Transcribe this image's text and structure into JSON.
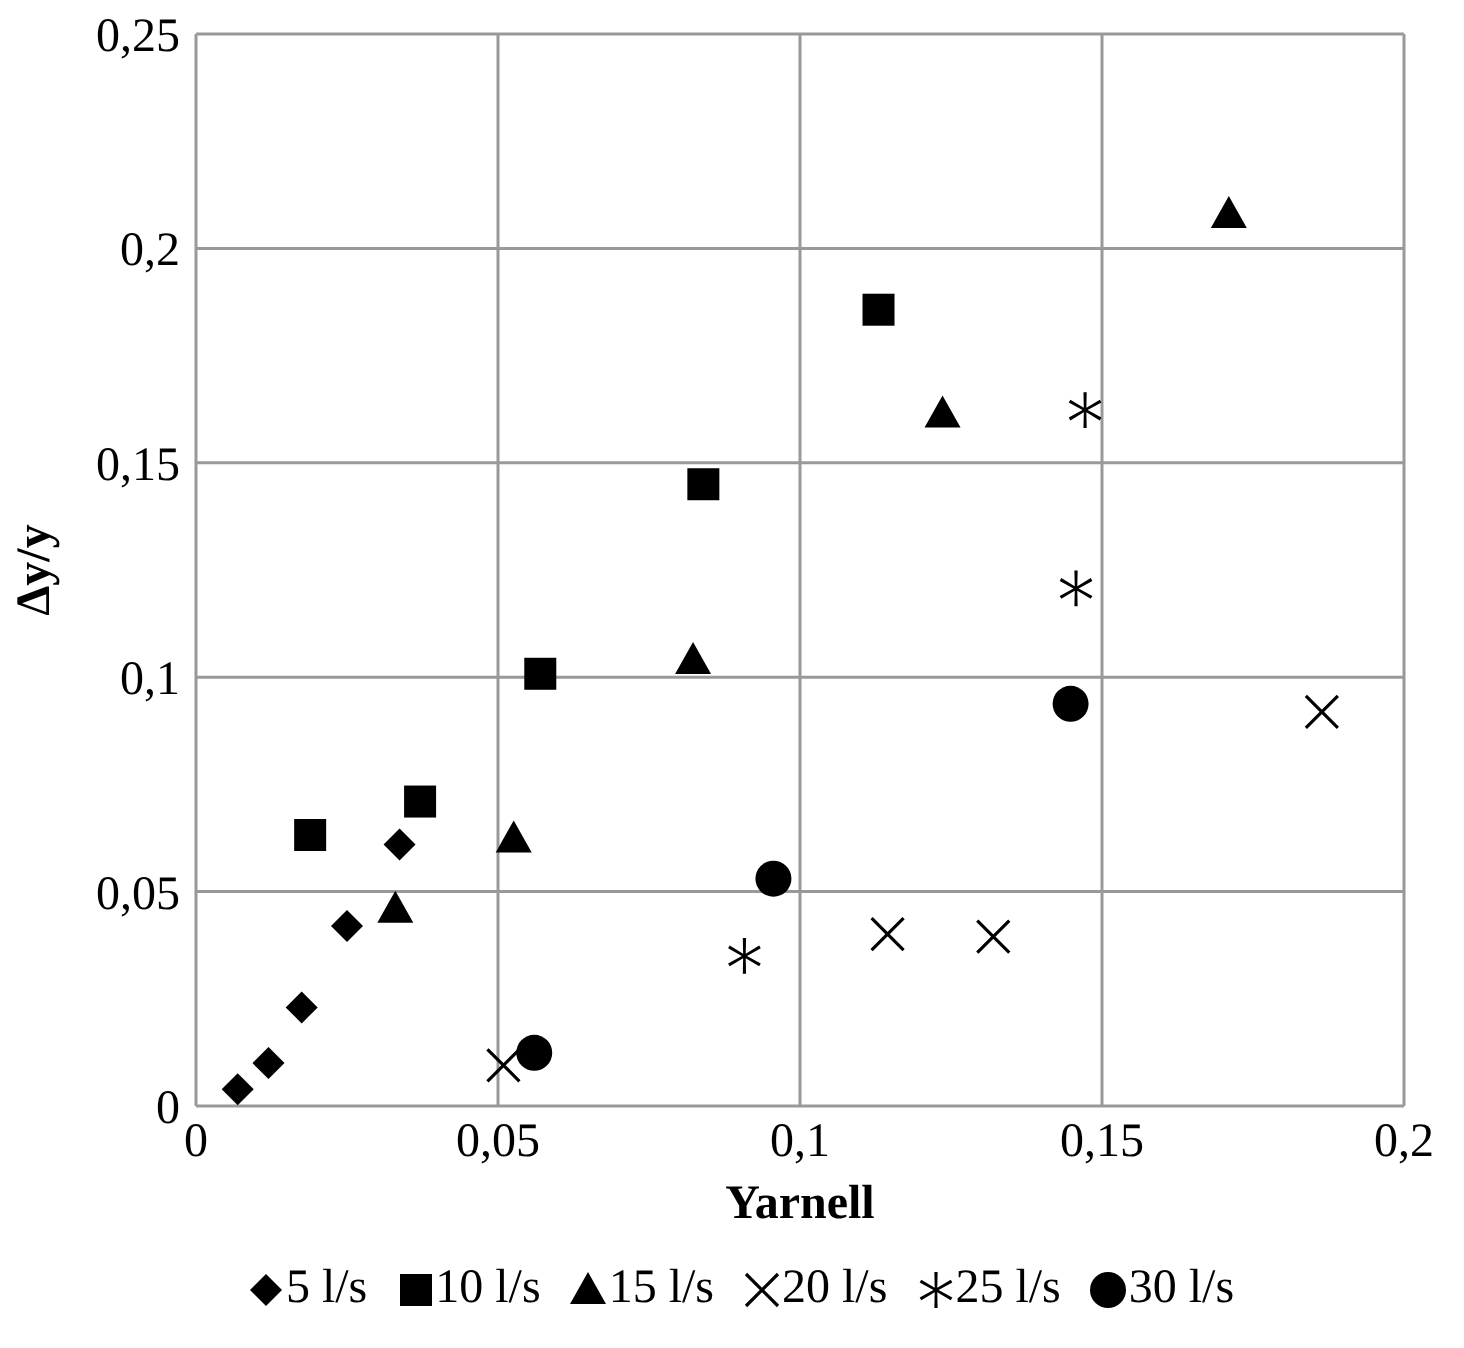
{
  "chart_data": {
    "type": "scatter",
    "xlabel": "Yarnell",
    "ylabel": "Δy/y",
    "xlim": [
      0,
      0.2
    ],
    "xticks": [
      0,
      {
        "value": 0.05,
        "label": "0,05"
      },
      {
        "value": 0.1,
        "label": "0,1"
      },
      {
        "value": 0.15,
        "label": "0,15"
      },
      {
        "value": 0.2,
        "label": "0,2"
      }
    ],
    "ylim": [
      0,
      0.25
    ],
    "yticks": [
      0,
      {
        "value": 0.05,
        "label": "0,05"
      },
      {
        "value": 0.1,
        "label": "0,1"
      },
      {
        "value": 0.15,
        "label": "0,15"
      },
      {
        "value": 0.2,
        "label": "0,2"
      },
      {
        "value": 0.25,
        "label": "0,25"
      }
    ],
    "grid": true,
    "legend": "bottom",
    "series": [
      {
        "name": "5 l/s",
        "color": "#000000",
        "marker": "diamond",
        "x": [
          0.0069,
          0.012,
          0.0175,
          0.025,
          0.0337
        ],
        "values": [
          0.0039,
          0.01,
          0.023,
          0.042,
          0.061
        ]
      },
      {
        "name": "10 l/s",
        "color": "#000000",
        "marker": "square",
        "x": [
          0.0189,
          0.0371,
          0.057,
          0.084,
          0.113
        ],
        "values": [
          0.0632,
          0.071,
          0.1008,
          0.145,
          0.1857
        ]
      },
      {
        "name": "15 l/s",
        "color": "#000000",
        "marker": "triangle",
        "x": [
          0.033,
          0.0526,
          0.0823,
          0.1236,
          0.171
        ],
        "values": [
          0.046,
          0.0624,
          0.104,
          0.1615,
          0.208
        ]
      },
      {
        "name": "20 l/s",
        "color": "#000000",
        "marker": "cross",
        "x": [
          0.0509,
          0.1145,
          0.132,
          0.1864
        ],
        "values": [
          0.0095,
          0.0401,
          0.0395,
          0.0919
        ]
      },
      {
        "name": "25 l/s",
        "color": "#000000",
        "marker": "star",
        "x": [
          0.0908,
          0.1457,
          0.1472
        ],
        "values": [
          0.035,
          0.1207,
          0.1623
        ]
      },
      {
        "name": "30 l/s",
        "color": "#000000",
        "marker": "circle",
        "x": [
          0.056,
          0.0956,
          0.1448
        ],
        "values": [
          0.0124,
          0.053,
          0.0938
        ]
      }
    ]
  }
}
